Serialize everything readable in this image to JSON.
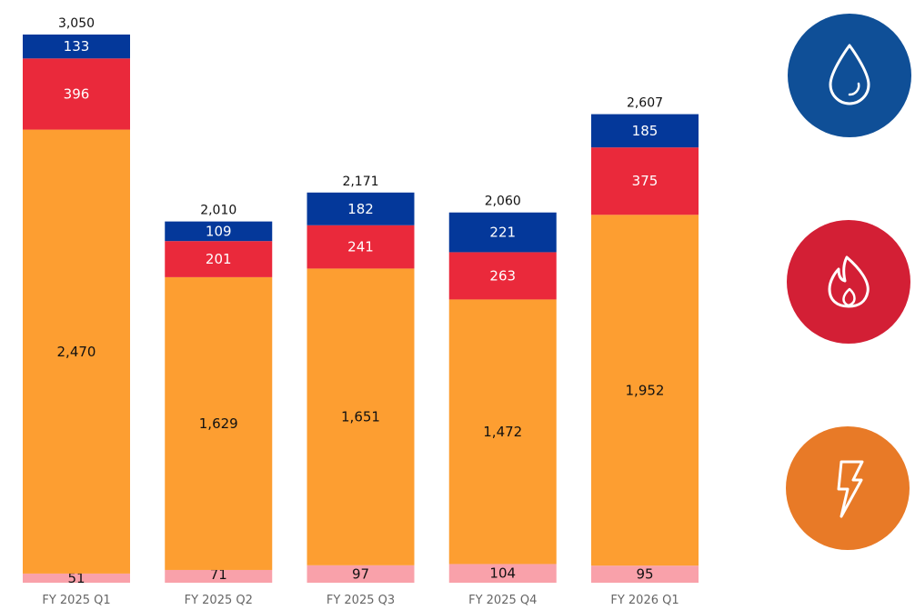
{
  "chart_data": {
    "type": "bar",
    "stacked": true,
    "title": "",
    "xlabel": "",
    "ylabel": "",
    "ylim": [
      0,
      3050
    ],
    "grid": false,
    "categories": [
      "FY 2025 Q1",
      "FY 2025 Q2",
      "FY 2025 Q3",
      "FY 2025 Q4",
      "FY 2026 Q1"
    ],
    "series": [
      {
        "name": "pink",
        "color": "#f9a1aa",
        "label_color": "#111111",
        "values": [
          51,
          71,
          97,
          104,
          95
        ],
        "labels": [
          "51",
          "71",
          "97",
          "104",
          "95"
        ]
      },
      {
        "name": "orange",
        "color": "#fd9e31",
        "label_color": "#111111",
        "values": [
          2470,
          1629,
          1651,
          1472,
          1952
        ],
        "labels": [
          "2,470",
          "1,629",
          "1,651",
          "1,472",
          "1,952"
        ]
      },
      {
        "name": "red",
        "color": "#ea293b",
        "label_color": "#ffffff",
        "values": [
          396,
          201,
          241,
          263,
          375
        ],
        "labels": [
          "396",
          "201",
          "241",
          "263",
          "375"
        ]
      },
      {
        "name": "blue",
        "color": "#04389a",
        "label_color": "#ffffff",
        "values": [
          133,
          109,
          182,
          221,
          185
        ],
        "labels": [
          "133",
          "109",
          "182",
          "221",
          "185"
        ]
      }
    ],
    "totals": [
      3050,
      2010,
      2171,
      2060,
      2607
    ],
    "total_labels": [
      "3,050",
      "2,010",
      "2,171",
      "2,060",
      "2,607"
    ]
  },
  "icons": [
    {
      "name": "water-drop-icon",
      "color": "#0f4f97"
    },
    {
      "name": "flame-icon",
      "color": "#d31f35"
    },
    {
      "name": "lightning-bolt-icon",
      "color": "#e87a27"
    }
  ]
}
